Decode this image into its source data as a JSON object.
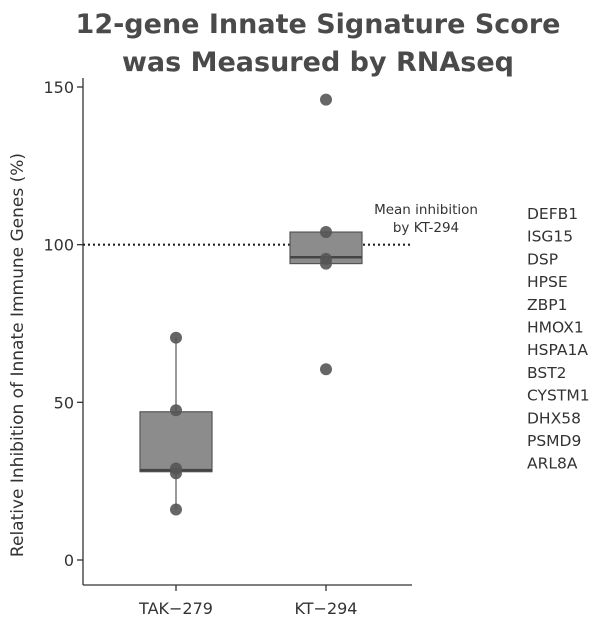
{
  "chart_data": {
    "type": "box",
    "title": "12-gene Innate Signature Score",
    "subtitle": "was Measured by RNAseq",
    "ylabel": "Relative Inhibition of Innate Immune Genes (%)",
    "xlabel": "",
    "ylim": [
      0,
      150
    ],
    "yticks": [
      0,
      50,
      100,
      150
    ],
    "categories": [
      "TAK−279",
      "KT−294"
    ],
    "groups": [
      {
        "name": "TAK−279",
        "q1": 28,
        "median": 28.5,
        "q3": 47,
        "whisker_low": 16,
        "whisker_high": 70.5,
        "points": [
          70.5,
          47.5,
          29,
          27.5,
          16
        ]
      },
      {
        "name": "KT−294",
        "q1": 94,
        "median": 96,
        "q3": 104,
        "whisker_low": 94,
        "whisker_high": 104,
        "points": [
          146,
          104,
          95.5,
          94,
          60.5
        ]
      }
    ],
    "reference_line": {
      "y": 100,
      "style": "dotted",
      "label_line1": "Mean inhibition",
      "label_line2": "by KT-294"
    },
    "genes": [
      "DEFB1",
      "ISG15",
      "DSP",
      "HPSE",
      "ZBP1",
      "HMOX1",
      "HSPA1A",
      "BST2",
      "CYSTM1",
      "DHX58",
      "PSMD9",
      "ARL8A"
    ],
    "colors": {
      "box_fill": "#8c8c8c",
      "box_stroke": "#555555",
      "point": "#555555",
      "axis": "#333333"
    }
  }
}
